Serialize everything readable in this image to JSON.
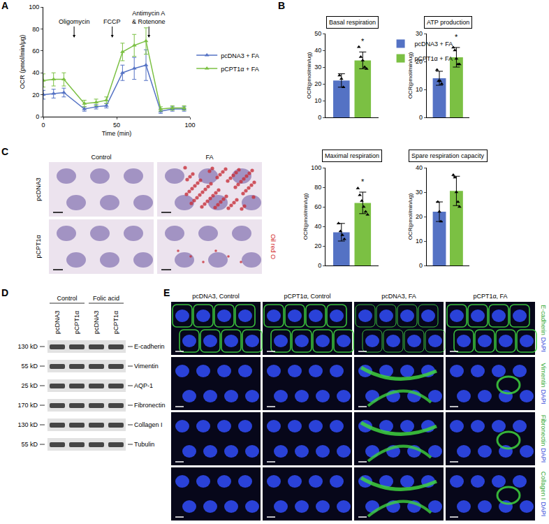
{
  "chart_data": [
    {
      "type": "line",
      "xlabel": "Time (min)",
      "ylabel": "OCR (pmol/min/μg)",
      "x": [
        0,
        7,
        14,
        28,
        36,
        43,
        54,
        62,
        70,
        80,
        88,
        96
      ],
      "xlim": [
        0,
        100
      ],
      "xticks": [
        0,
        50,
        100
      ],
      "ylim": [
        0,
        100
      ],
      "yticks": [
        0,
        20,
        40,
        60,
        80,
        100
      ],
      "grid": false,
      "legend": "right",
      "marker": "triangle-up",
      "series": [
        {
          "name": "pcDNA3 + FA",
          "color": "#5472c4",
          "values": [
            20,
            21,
            22,
            7,
            9,
            10,
            40,
            44,
            47,
            5,
            7,
            7
          ],
          "error": [
            4,
            4,
            4,
            2,
            2,
            2,
            7,
            10,
            14,
            2,
            2,
            2
          ]
        },
        {
          "name": "pCPT1α + FA",
          "color": "#7bc043",
          "values": [
            33,
            34,
            34,
            12,
            13,
            15,
            59,
            65,
            69,
            7,
            8,
            8
          ],
          "error": [
            6,
            6,
            6,
            3,
            3,
            3,
            8,
            10,
            12,
            2,
            2,
            2
          ]
        }
      ],
      "annotations": [
        {
          "text": [
            "Oligomycin"
          ],
          "x": 21,
          "y": 72
        },
        {
          "text": [
            "FCCP"
          ],
          "x": 47,
          "y": 72
        },
        {
          "text": [
            "Antimycin A",
            "& Rotenone"
          ],
          "x": 72,
          "y": 72
        }
      ]
    },
    {
      "type": "bar",
      "title": "Basal respiration",
      "ylabel": "OCR(pmol/min/ug)",
      "categories": [
        null
      ],
      "ylim": [
        0,
        50
      ],
      "yticks": [
        0,
        10,
        20,
        30,
        40,
        50
      ],
      "tick_labels": "y",
      "grid": false,
      "legend": "right",
      "series": [
        {
          "name": "pcDNA3 + FA",
          "color": "#5472c4",
          "values": [
            22
          ],
          "error": [
            4
          ],
          "points": [
            [
              25,
              23,
              18
            ]
          ],
          "marker": "triangle-up"
        },
        {
          "name": "pCPT1α + FA",
          "color": "#7bc043",
          "values": [
            34
          ],
          "error": [
            5
          ],
          "points": [
            [
              42,
              36,
              34,
              30,
              29
            ]
          ],
          "marker": "triangle-up"
        }
      ],
      "annotations": [
        {
          "text": "*",
          "series": "pCPT1α + FA"
        }
      ]
    },
    {
      "type": "bar",
      "title": "ATP production",
      "ylabel": "OCR(pmol/min/ug)",
      "categories": [
        null
      ],
      "ylim": [
        0,
        30
      ],
      "yticks": [
        0,
        10,
        20,
        30
      ],
      "tick_labels": "y",
      "grid": false,
      "series": [
        {
          "name": "pcDNA3 + FA",
          "color": "#5472c4",
          "values": [
            14
          ],
          "error": [
            2.5
          ],
          "points": [
            [
              17,
              13,
              13,
              12
            ]
          ],
          "marker": "triangle-up"
        },
        {
          "name": "pCPT1α + FA",
          "color": "#7bc043",
          "values": [
            21.5
          ],
          "error": [
            3.5
          ],
          "points": [
            [
              25,
              24,
              21,
              19,
              19
            ]
          ],
          "marker": "triangle-up"
        }
      ],
      "annotations": [
        {
          "text": "*",
          "series": "pCPT1α + FA"
        }
      ]
    },
    {
      "type": "bar",
      "title": "Maximal respiration",
      "ylabel": "OCR(pmol/min/ug)",
      "categories": [
        null
      ],
      "ylim": [
        0,
        100
      ],
      "yticks": [
        0,
        20,
        40,
        60,
        80,
        100
      ],
      "tick_labels": "y",
      "grid": false,
      "series": [
        {
          "name": "pcDNA3 + FA",
          "color": "#5472c4",
          "values": [
            34
          ],
          "error": [
            9
          ],
          "points": [
            [
              43,
              35,
              31,
              27
            ]
          ],
          "marker": "triangle-up"
        },
        {
          "name": "pCPT1α + FA",
          "color": "#7bc043",
          "values": [
            64
          ],
          "error": [
            11
          ],
          "points": [
            [
              79,
              72,
              66,
              60,
              55,
              52
            ]
          ],
          "marker": "triangle-up"
        }
      ],
      "annotations": [
        {
          "text": "*",
          "series": "pCPT1α + FA"
        }
      ]
    },
    {
      "type": "bar",
      "title": "Spare respiration capacity",
      "ylabel": "OCR(pmol/min/ug)",
      "categories": [
        null
      ],
      "ylim": [
        0,
        40
      ],
      "yticks": [
        0,
        10,
        20,
        30,
        40
      ],
      "tick_labels": "y",
      "grid": false,
      "series": [
        {
          "name": "pcDNA3 + FA",
          "color": "#5472c4",
          "values": [
            22
          ],
          "error": [
            4
          ],
          "points": [
            [
              26,
              22,
              18
            ]
          ],
          "marker": "triangle-up"
        },
        {
          "name": "pCPT1α + FA",
          "color": "#7bc043",
          "values": [
            30.5
          ],
          "error": [
            6
          ],
          "points": [
            [
              37,
              36,
              30,
              26,
              24
            ]
          ],
          "marker": "triangle-up"
        }
      ]
    }
  ],
  "panel_labels": [
    "A",
    "B",
    "C",
    "D",
    "E"
  ],
  "images": {
    "C": {
      "columns": [
        "Control",
        "FA"
      ],
      "rows": [
        "pcDNA3",
        "pCPT1α"
      ],
      "stain": "Oil red O"
    },
    "D": {
      "groups": [
        "Control",
        "Folic acid"
      ],
      "lanes": [
        "pcDNA3",
        "pCPT1α",
        "pcDNA3",
        "pCPT1α"
      ],
      "blots": [
        {
          "size": "130 kD",
          "protein": "E-cadherin"
        },
        {
          "size": "55 kD",
          "protein": "Vimentin"
        },
        {
          "size": "25 kD",
          "protein": "AQP-1"
        },
        {
          "size": "170 kD",
          "protein": "Fibronectin"
        },
        {
          "size": "130 kD",
          "protein": "Collagen I"
        },
        {
          "size": "55 kD",
          "protein": "Tubulin"
        }
      ]
    },
    "E": {
      "columns": [
        "pcDNA3, Control",
        "pCPT1α, Control",
        "pcDNA3, FA",
        "pCPT1α, FA"
      ],
      "rows": [
        {
          "marker": "E-cadherin",
          "stain": "DAPI"
        },
        {
          "marker": "Vimentin",
          "stain": "DAPI"
        },
        {
          "marker": "Fibronectin",
          "stain": "DAPI"
        },
        {
          "marker": "Collagen I",
          "stain": "DAPI"
        }
      ]
    }
  }
}
